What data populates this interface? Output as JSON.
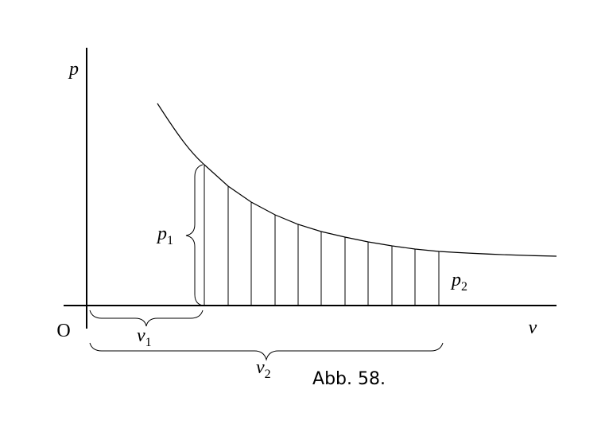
{
  "axes": {
    "y_label": "p",
    "x_label": "v",
    "origin": "O"
  },
  "labels": {
    "p1": {
      "base": "p",
      "sub": "1"
    },
    "p2": {
      "base": "p",
      "sub": "2"
    },
    "v1": {
      "base": "v",
      "sub": "1"
    },
    "v2": {
      "base": "v",
      "sub": "2"
    }
  },
  "caption": "Abb. 58."
}
